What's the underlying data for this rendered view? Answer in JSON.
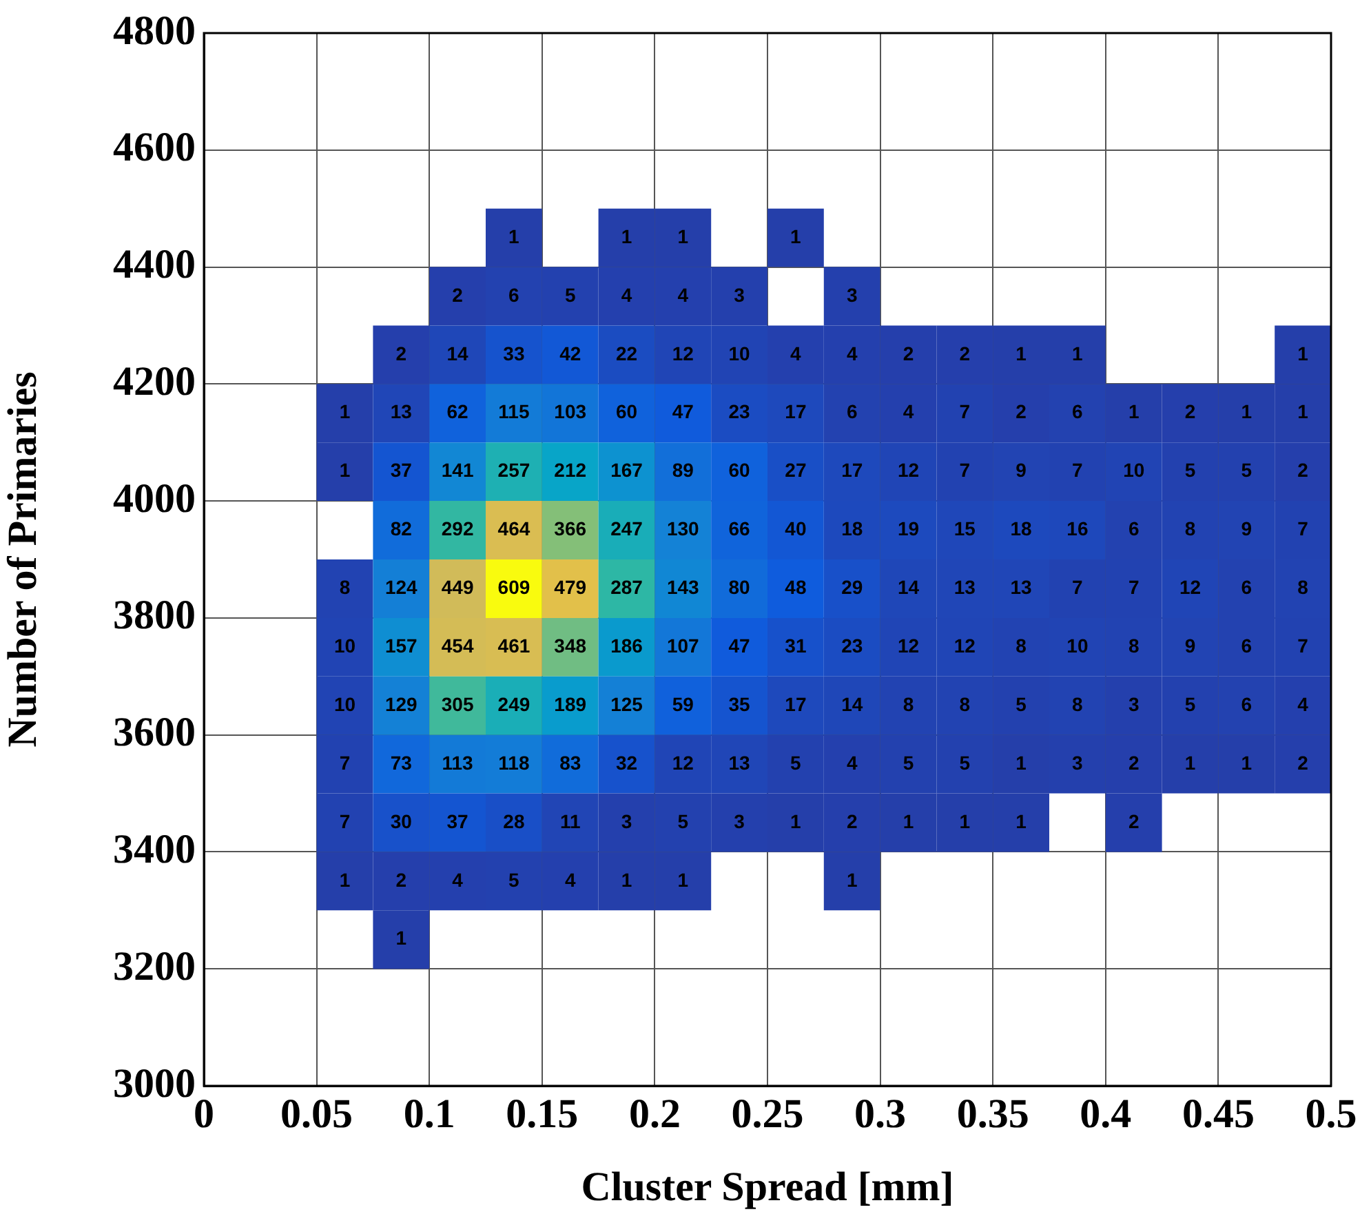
{
  "chart_data": {
    "type": "heatmap",
    "xlabel": "Cluster Spread [mm]",
    "ylabel": "Number of Primaries",
    "x": [
      0.0625,
      0.0875,
      0.1125,
      0.1375,
      0.1625,
      0.1875,
      0.2125,
      0.2375,
      0.2625,
      0.2875,
      0.3125,
      0.3375,
      0.3625,
      0.3875,
      0.4125,
      0.4375,
      0.4625,
      0.4875
    ],
    "y": [
      4450,
      4350,
      4250,
      4150,
      4050,
      3950,
      3850,
      3750,
      3650,
      3550,
      3450,
      3350,
      3250
    ],
    "xlim": [
      0,
      0.5
    ],
    "xticks": [
      0,
      0.05,
      0.1,
      0.15,
      0.2,
      0.25,
      0.3,
      0.35,
      0.4,
      0.45,
      0.5
    ],
    "ylim": [
      3000,
      4800
    ],
    "yticks": [
      3000,
      3200,
      3400,
      3600,
      3800,
      4000,
      4200,
      4400,
      4600,
      4800
    ],
    "grid": true,
    "data_labels": true,
    "cells": [
      [
        null,
        null,
        null,
        1,
        null,
        1,
        1,
        null,
        1,
        null,
        null,
        null,
        null,
        null,
        null,
        null,
        null,
        null
      ],
      [
        null,
        null,
        2,
        6,
        5,
        4,
        4,
        3,
        null,
        3,
        null,
        null,
        null,
        null,
        null,
        null,
        null,
        null
      ],
      [
        null,
        2,
        14,
        33,
        42,
        22,
        12,
        10,
        4,
        4,
        2,
        2,
        1,
        1,
        null,
        null,
        null,
        1
      ],
      [
        1,
        13,
        62,
        115,
        103,
        60,
        47,
        23,
        17,
        6,
        4,
        7,
        2,
        6,
        1,
        2,
        1,
        1
      ],
      [
        1,
        37,
        141,
        257,
        212,
        167,
        89,
        60,
        27,
        17,
        12,
        7,
        9,
        7,
        10,
        5,
        5,
        2
      ],
      [
        null,
        82,
        292,
        464,
        366,
        247,
        130,
        66,
        40,
        18,
        19,
        15,
        18,
        16,
        6,
        8,
        9,
        7
      ],
      [
        8,
        124,
        449,
        609,
        479,
        287,
        143,
        80,
        48,
        29,
        14,
        13,
        13,
        7,
        7,
        12,
        6,
        8
      ],
      [
        10,
        157,
        454,
        461,
        348,
        186,
        107,
        47,
        31,
        23,
        12,
        12,
        8,
        10,
        8,
        9,
        6,
        7
      ],
      [
        10,
        129,
        305,
        249,
        189,
        125,
        59,
        35,
        17,
        14,
        8,
        8,
        5,
        8,
        3,
        5,
        6,
        4
      ],
      [
        7,
        73,
        113,
        118,
        83,
        32,
        12,
        13,
        5,
        4,
        5,
        5,
        1,
        3,
        2,
        1,
        1,
        2
      ],
      [
        7,
        30,
        37,
        28,
        11,
        3,
        5,
        3,
        1,
        2,
        1,
        1,
        1,
        null,
        2,
        null,
        null,
        null
      ],
      [
        1,
        2,
        4,
        5,
        4,
        1,
        1,
        null,
        null,
        1,
        null,
        null,
        null,
        null,
        null,
        null,
        null,
        null
      ],
      [
        null,
        1,
        null,
        null,
        null,
        null,
        null,
        null,
        null,
        null,
        null,
        null,
        null,
        null,
        null,
        null,
        null,
        null
      ]
    ]
  }
}
